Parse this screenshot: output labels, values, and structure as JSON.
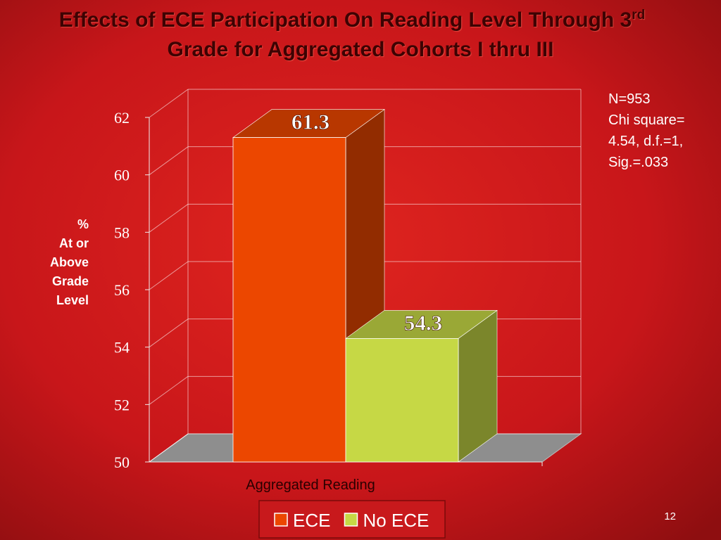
{
  "chart_data": {
    "type": "bar3d",
    "title": [
      "Effects of ECE Participation On Reading Level Through 3",
      "rd",
      "Grade for Aggregated Cohorts I thru III"
    ],
    "y_label": [
      "%",
      "At or",
      "Above",
      "Grade",
      "Level"
    ],
    "categories": [
      "Aggregated Reading"
    ],
    "series": [
      {
        "name": "ECE",
        "color": "#ec4700",
        "values": [
          61.3
        ]
      },
      {
        "name": "No ECE",
        "color": "#c6d845",
        "values": [
          54.3
        ]
      }
    ],
    "ylim": [
      50,
      62
    ],
    "yticks": [
      50,
      52,
      54,
      56,
      58,
      60,
      62
    ],
    "grid": true,
    "annotation": [
      "N=953",
      "Chi square=",
      "4.54, d.f.=1,",
      "Sig.=.033"
    ],
    "page_number": "12"
  }
}
